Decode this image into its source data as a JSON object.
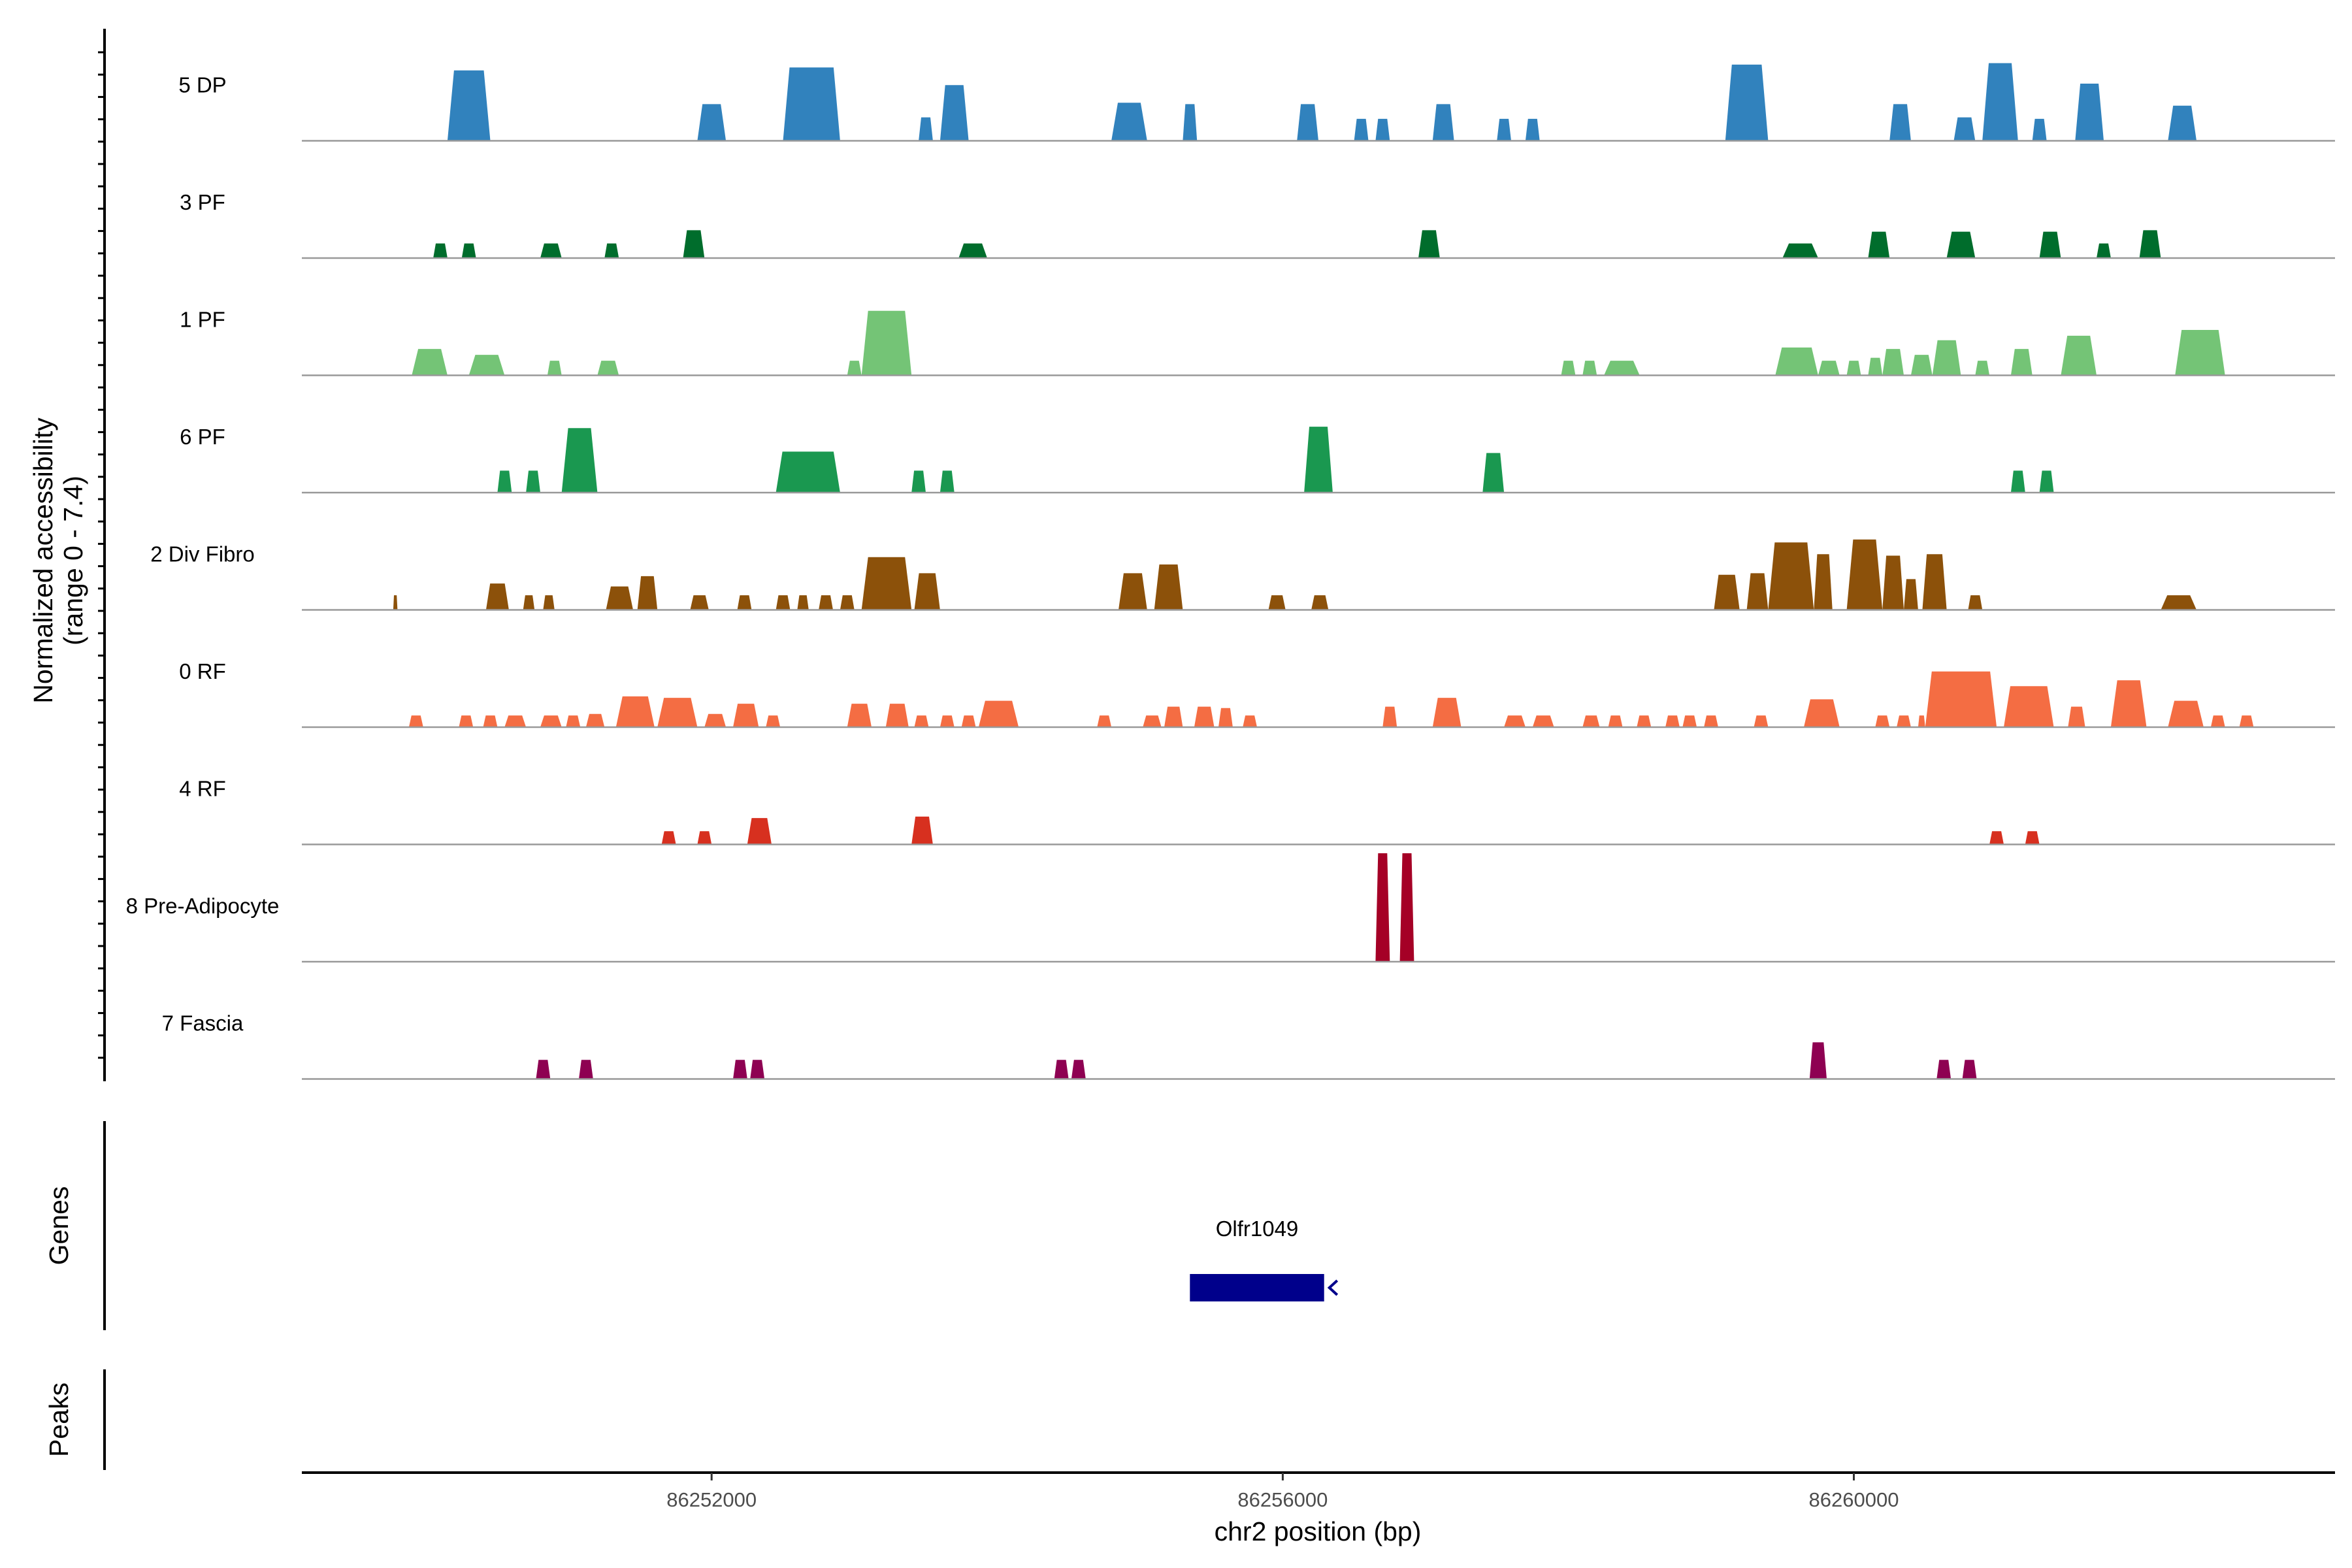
{
  "chart_data": {
    "type": "area",
    "title": "",
    "xlabel": "chr2 position (bp)",
    "ylabel_line1": "Normalized accessibility",
    "ylabel_line2": "(range 0 - 7.4)",
    "y_range": [
      0,
      7.4
    ],
    "xlim": [
      86249130,
      86263370
    ],
    "x_ticks": [
      {
        "value": 86252000,
        "label": "86252000"
      },
      {
        "value": 86256000,
        "label": "86256000"
      },
      {
        "value": 86260000,
        "label": "86260000"
      }
    ],
    "series": [
      {
        "name": "5 DP",
        "color": "#3182BD",
        "peaks": [
          {
            "start": 86250150,
            "end": 86250450,
            "height": 4.8
          },
          {
            "start": 86251900,
            "end": 86252100,
            "height": 2.5
          },
          {
            "start": 86252500,
            "end": 86252900,
            "height": 5.0
          },
          {
            "start": 86253450,
            "end": 86253550,
            "height": 1.6
          },
          {
            "start": 86253600,
            "end": 86253800,
            "height": 3.8
          },
          {
            "start": 86254800,
            "end": 86255050,
            "height": 2.6
          },
          {
            "start": 86255300,
            "end": 86255400,
            "height": 2.5
          },
          {
            "start": 86256100,
            "end": 86256250,
            "height": 2.5
          },
          {
            "start": 86256500,
            "end": 86256600,
            "height": 1.5
          },
          {
            "start": 86256650,
            "end": 86256750,
            "height": 1.5
          },
          {
            "start": 86257050,
            "end": 86257200,
            "height": 2.5
          },
          {
            "start": 86257500,
            "end": 86257600,
            "height": 1.5
          },
          {
            "start": 86257700,
            "end": 86257800,
            "height": 1.5
          },
          {
            "start": 86259100,
            "end": 86259400,
            "height": 5.2
          },
          {
            "start": 86260250,
            "end": 86260400,
            "height": 2.5
          },
          {
            "start": 86260700,
            "end": 86260850,
            "height": 1.6
          },
          {
            "start": 86260900,
            "end": 86261150,
            "height": 5.3
          },
          {
            "start": 86261250,
            "end": 86261350,
            "height": 1.5
          },
          {
            "start": 86261550,
            "end": 86261750,
            "height": 3.9
          },
          {
            "start": 86262200,
            "end": 86262400,
            "height": 2.4
          }
        ]
      },
      {
        "name": "3 PF",
        "color": "#006D2C",
        "peaks": [
          {
            "start": 86250050,
            "end": 86250150,
            "height": 1.0
          },
          {
            "start": 86250250,
            "end": 86250350,
            "height": 1.0
          },
          {
            "start": 86250800,
            "end": 86250950,
            "height": 1.0
          },
          {
            "start": 86251250,
            "end": 86251350,
            "height": 1.0
          },
          {
            "start": 86251800,
            "end": 86251950,
            "height": 1.9
          },
          {
            "start": 86253730,
            "end": 86253930,
            "height": 1.0
          },
          {
            "start": 86256950,
            "end": 86257100,
            "height": 1.9
          },
          {
            "start": 86259500,
            "end": 86259750,
            "height": 1.0
          },
          {
            "start": 86260100,
            "end": 86260250,
            "height": 1.8
          },
          {
            "start": 86260650,
            "end": 86260850,
            "height": 1.8
          },
          {
            "start": 86261300,
            "end": 86261450,
            "height": 1.8
          },
          {
            "start": 86261700,
            "end": 86261800,
            "height": 1.0
          },
          {
            "start": 86262000,
            "end": 86262150,
            "height": 1.9
          }
        ]
      },
      {
        "name": "1 PF",
        "color": "#74C476",
        "peaks": [
          {
            "start": 86249900,
            "end": 86250150,
            "height": 1.8
          },
          {
            "start": 86250300,
            "end": 86250550,
            "height": 1.4
          },
          {
            "start": 86250850,
            "end": 86250950,
            "height": 1.0
          },
          {
            "start": 86251200,
            "end": 86251350,
            "height": 1.0
          },
          {
            "start": 86252950,
            "end": 86253050,
            "height": 1.0
          },
          {
            "start": 86253050,
            "end": 86253400,
            "height": 4.4
          },
          {
            "start": 86257950,
            "end": 86258050,
            "height": 1.0
          },
          {
            "start": 86258100,
            "end": 86258200,
            "height": 1.0
          },
          {
            "start": 86258250,
            "end": 86258500,
            "height": 1.0
          },
          {
            "start": 86259450,
            "end": 86259750,
            "height": 1.9
          },
          {
            "start": 86259750,
            "end": 86259900,
            "height": 1.0
          },
          {
            "start": 86259950,
            "end": 86260050,
            "height": 1.0
          },
          {
            "start": 86260100,
            "end": 86260200,
            "height": 1.2
          },
          {
            "start": 86260200,
            "end": 86260350,
            "height": 1.8
          },
          {
            "start": 86260400,
            "end": 86260550,
            "height": 1.4
          },
          {
            "start": 86260550,
            "end": 86260750,
            "height": 2.4
          },
          {
            "start": 86260850,
            "end": 86260950,
            "height": 1.0
          },
          {
            "start": 86261100,
            "end": 86261250,
            "height": 1.8
          },
          {
            "start": 86261450,
            "end": 86261700,
            "height": 2.7
          },
          {
            "start": 86262250,
            "end": 86262600,
            "height": 3.1
          }
        ]
      },
      {
        "name": "6 PF",
        "color": "#1A9850",
        "peaks": [
          {
            "start": 86250500,
            "end": 86250600,
            "height": 1.5
          },
          {
            "start": 86250700,
            "end": 86250800,
            "height": 1.5
          },
          {
            "start": 86250950,
            "end": 86251200,
            "height": 4.4
          },
          {
            "start": 86252450,
            "end": 86252900,
            "height": 2.8
          },
          {
            "start": 86253400,
            "end": 86253500,
            "height": 1.5
          },
          {
            "start": 86253600,
            "end": 86253700,
            "height": 1.5
          },
          {
            "start": 86256150,
            "end": 86256350,
            "height": 4.5
          },
          {
            "start": 86257400,
            "end": 86257550,
            "height": 2.7
          },
          {
            "start": 86261100,
            "end": 86261200,
            "height": 1.5
          },
          {
            "start": 86261300,
            "end": 86261400,
            "height": 1.5
          }
        ]
      },
      {
        "name": "2 Div Fibro",
        "color": "#8C510A",
        "peaks": [
          {
            "start": 86249770,
            "end": 86249800,
            "height": 1.0
          },
          {
            "start": 86250420,
            "end": 86250580,
            "height": 1.8
          },
          {
            "start": 86250680,
            "end": 86250760,
            "height": 1.0
          },
          {
            "start": 86250820,
            "end": 86250900,
            "height": 1.0
          },
          {
            "start": 86251260,
            "end": 86251450,
            "height": 1.6
          },
          {
            "start": 86251480,
            "end": 86251620,
            "height": 2.3
          },
          {
            "start": 86251850,
            "end": 86251980,
            "height": 1.0
          },
          {
            "start": 86252180,
            "end": 86252280,
            "height": 1.0
          },
          {
            "start": 86252450,
            "end": 86252550,
            "height": 1.0
          },
          {
            "start": 86252600,
            "end": 86252680,
            "height": 1.0
          },
          {
            "start": 86252750,
            "end": 86252850,
            "height": 1.0
          },
          {
            "start": 86252900,
            "end": 86253000,
            "height": 1.0
          },
          {
            "start": 86253050,
            "end": 86253400,
            "height": 3.6
          },
          {
            "start": 86253420,
            "end": 86253600,
            "height": 2.5
          },
          {
            "start": 86254850,
            "end": 86255050,
            "height": 2.5
          },
          {
            "start": 86255100,
            "end": 86255300,
            "height": 3.1
          },
          {
            "start": 86255900,
            "end": 86256020,
            "height": 1.0
          },
          {
            "start": 86256200,
            "end": 86256320,
            "height": 1.0
          },
          {
            "start": 86259020,
            "end": 86259200,
            "height": 2.4
          },
          {
            "start": 86259250,
            "end": 86259400,
            "height": 2.5
          },
          {
            "start": 86259400,
            "end": 86259720,
            "height": 4.6
          },
          {
            "start": 86259720,
            "end": 86259850,
            "height": 3.8
          },
          {
            "start": 86259950,
            "end": 86260200,
            "height": 4.8
          },
          {
            "start": 86260200,
            "end": 86260350,
            "height": 3.7
          },
          {
            "start": 86260350,
            "end": 86260450,
            "height": 2.1
          },
          {
            "start": 86260480,
            "end": 86260650,
            "height": 3.8
          },
          {
            "start": 86260800,
            "end": 86260900,
            "height": 1.0
          },
          {
            "start": 86262150,
            "end": 86262400,
            "height": 1.0
          }
        ]
      },
      {
        "name": "0 RF",
        "color": "#F46D43",
        "peaks": [
          {
            "start": 86249880,
            "end": 86249980,
            "height": 0.8
          },
          {
            "start": 86250230,
            "end": 86250330,
            "height": 0.8
          },
          {
            "start": 86250400,
            "end": 86250500,
            "height": 0.8
          },
          {
            "start": 86250550,
            "end": 86250700,
            "height": 0.8
          },
          {
            "start": 86250800,
            "end": 86250950,
            "height": 0.8
          },
          {
            "start": 86250980,
            "end": 86251080,
            "height": 0.8
          },
          {
            "start": 86251120,
            "end": 86251250,
            "height": 0.9
          },
          {
            "start": 86251330,
            "end": 86251600,
            "height": 2.1
          },
          {
            "start": 86251620,
            "end": 86251900,
            "height": 2.0
          },
          {
            "start": 86251950,
            "end": 86252100,
            "height": 0.9
          },
          {
            "start": 86252150,
            "end": 86252330,
            "height": 1.6
          },
          {
            "start": 86252380,
            "end": 86252480,
            "height": 0.8
          },
          {
            "start": 86252950,
            "end": 86253120,
            "height": 1.6
          },
          {
            "start": 86253220,
            "end": 86253380,
            "height": 1.6
          },
          {
            "start": 86253420,
            "end": 86253520,
            "height": 0.8
          },
          {
            "start": 86253600,
            "end": 86253700,
            "height": 0.8
          },
          {
            "start": 86253750,
            "end": 86253850,
            "height": 0.8
          },
          {
            "start": 86253870,
            "end": 86254150,
            "height": 1.8
          },
          {
            "start": 86254700,
            "end": 86254800,
            "height": 0.8
          },
          {
            "start": 86255020,
            "end": 86255150,
            "height": 0.8
          },
          {
            "start": 86255170,
            "end": 86255300,
            "height": 1.4
          },
          {
            "start": 86255380,
            "end": 86255520,
            "height": 1.4
          },
          {
            "start": 86255550,
            "end": 86255650,
            "height": 1.3
          },
          {
            "start": 86255720,
            "end": 86255820,
            "height": 0.8
          },
          {
            "start": 86256700,
            "end": 86256800,
            "height": 1.4
          },
          {
            "start": 86257050,
            "end": 86257250,
            "height": 2.0
          },
          {
            "start": 86257550,
            "end": 86257700,
            "height": 0.8
          },
          {
            "start": 86257750,
            "end": 86257900,
            "height": 0.8
          },
          {
            "start": 86258100,
            "end": 86258220,
            "height": 0.8
          },
          {
            "start": 86258280,
            "end": 86258380,
            "height": 0.8
          },
          {
            "start": 86258480,
            "end": 86258580,
            "height": 0.8
          },
          {
            "start": 86258680,
            "end": 86258780,
            "height": 0.8
          },
          {
            "start": 86258800,
            "end": 86258900,
            "height": 0.8
          },
          {
            "start": 86258950,
            "end": 86259050,
            "height": 0.8
          },
          {
            "start": 86259300,
            "end": 86259400,
            "height": 0.8
          },
          {
            "start": 86259650,
            "end": 86259900,
            "height": 1.9
          },
          {
            "start": 86260150,
            "end": 86260250,
            "height": 0.8
          },
          {
            "start": 86260300,
            "end": 86260400,
            "height": 0.8
          },
          {
            "start": 86260450,
            "end": 86260500,
            "height": 0.8
          },
          {
            "start": 86260500,
            "end": 86261000,
            "height": 3.8
          },
          {
            "start": 86261050,
            "end": 86261400,
            "height": 2.8
          },
          {
            "start": 86261500,
            "end": 86261620,
            "height": 1.4
          },
          {
            "start": 86261800,
            "end": 86262050,
            "height": 3.2
          },
          {
            "start": 86262200,
            "end": 86262450,
            "height": 1.8
          },
          {
            "start": 86262500,
            "end": 86262600,
            "height": 0.8
          },
          {
            "start": 86262700,
            "end": 86262800,
            "height": 0.8
          }
        ]
      },
      {
        "name": "4 RF",
        "color": "#D7301F",
        "peaks": [
          {
            "start": 86251650,
            "end": 86251750,
            "height": 0.9
          },
          {
            "start": 86251900,
            "end": 86252000,
            "height": 0.9
          },
          {
            "start": 86252250,
            "end": 86252420,
            "height": 1.8
          },
          {
            "start": 86253400,
            "end": 86253550,
            "height": 1.9
          },
          {
            "start": 86260950,
            "end": 86261050,
            "height": 0.9
          },
          {
            "start": 86261200,
            "end": 86261300,
            "height": 0.9
          }
        ]
      },
      {
        "name": "8 Pre-Adipocyte",
        "color": "#A50026",
        "peaks": [
          {
            "start": 86256650,
            "end": 86256750,
            "height": 7.4
          },
          {
            "start": 86256820,
            "end": 86256920,
            "height": 7.4
          }
        ]
      },
      {
        "name": "7 Fascia",
        "color": "#8E0152",
        "peaks": [
          {
            "start": 86250770,
            "end": 86250870,
            "height": 1.3
          },
          {
            "start": 86251070,
            "end": 86251170,
            "height": 1.3
          },
          {
            "start": 86252150,
            "end": 86252250,
            "height": 1.3
          },
          {
            "start": 86252270,
            "end": 86252370,
            "height": 1.3
          },
          {
            "start": 86254400,
            "end": 86254500,
            "height": 1.3
          },
          {
            "start": 86254520,
            "end": 86254620,
            "height": 1.3
          },
          {
            "start": 86259690,
            "end": 86259810,
            "height": 2.5
          },
          {
            "start": 86260580,
            "end": 86260680,
            "height": 1.3
          },
          {
            "start": 86260760,
            "end": 86260860,
            "height": 1.3
          }
        ]
      }
    ],
    "genes_panel": {
      "title": "Genes",
      "genes": [
        {
          "name": "Olfr1049",
          "start": 86255350,
          "end": 86256290,
          "strand": "-"
        }
      ]
    },
    "peaks_panel": {
      "title": "Peaks",
      "peaks": []
    },
    "colors": {
      "baseline": "#999999",
      "axis": "#000000",
      "gene": "#00008B",
      "tick_text": "#4D4D4D"
    }
  }
}
